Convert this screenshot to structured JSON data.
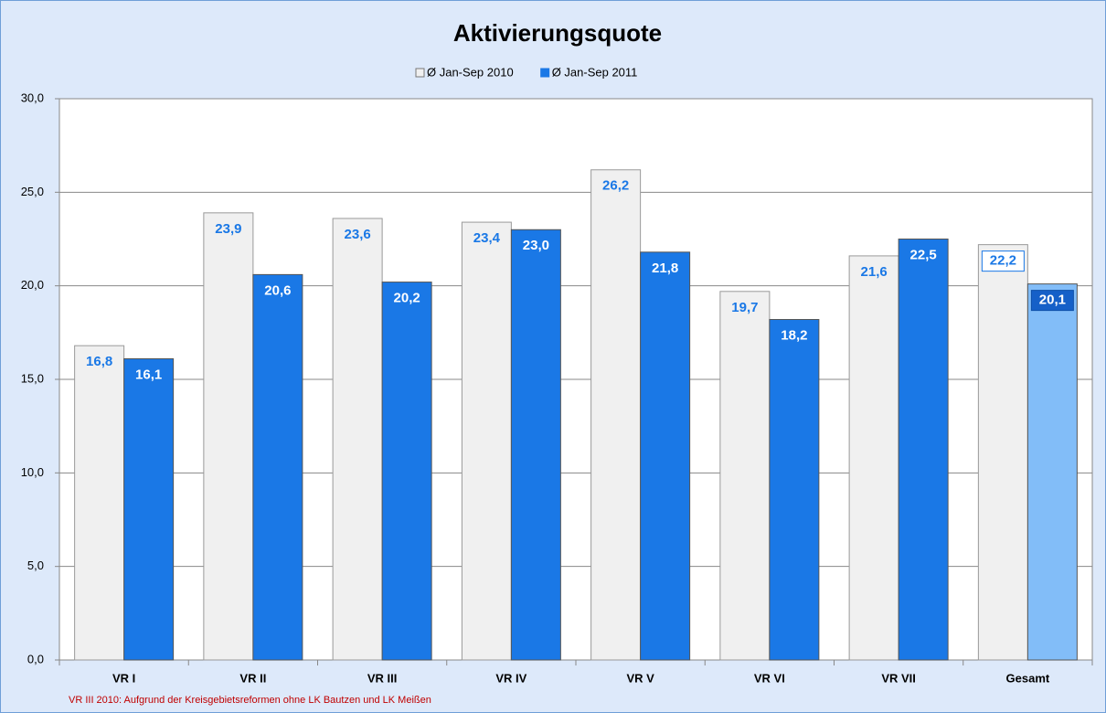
{
  "chart_data": {
    "type": "bar",
    "title": "Aktivierungsquote",
    "categories": [
      "VR I",
      "VR II",
      "VR III",
      "VR IV",
      "VR V",
      "VR VI",
      "VR VII",
      "Gesamt"
    ],
    "series": [
      {
        "name": "Ø Jan-Sep 2010",
        "color": "#f0f0f0",
        "values": [
          16.8,
          23.9,
          23.6,
          23.4,
          26.2,
          19.7,
          21.6,
          22.2
        ],
        "value_labels": [
          "16,8",
          "23,9",
          "23,6",
          "23,4",
          "26,2",
          "19,7",
          "21,6",
          "22,2"
        ]
      },
      {
        "name": "Ø Jan-Sep 2011",
        "color": "#1a78e6",
        "colors": [
          "#1a78e6",
          "#1a78e6",
          "#1a78e6",
          "#1a78e6",
          "#1a78e6",
          "#1a78e6",
          "#1a78e6",
          "#82bdf8"
        ],
        "values": [
          16.1,
          20.6,
          20.2,
          23.0,
          21.8,
          18.2,
          22.5,
          20.1
        ],
        "value_labels": [
          "16,1",
          "20,6",
          "20,2",
          "23,0",
          "21,8",
          "18,2",
          "22,5",
          "20,1"
        ]
      }
    ],
    "ylim": [
      0,
      30
    ],
    "yticks": [
      {
        "value": 0,
        "label": "0,0"
      },
      {
        "value": 5,
        "label": "5,0"
      },
      {
        "value": 10,
        "label": "10,0"
      },
      {
        "value": 15,
        "label": "15,0"
      },
      {
        "value": 20,
        "label": "20,0"
      },
      {
        "value": 25,
        "label": "25,0"
      },
      {
        "value": 30,
        "label": "30,0"
      }
    ],
    "grid": true,
    "legend": "top",
    "footnote": "VR III 2010: Aufgrund der Kreisgebietsreformen ohne LK Bautzen und LK Meißen"
  }
}
